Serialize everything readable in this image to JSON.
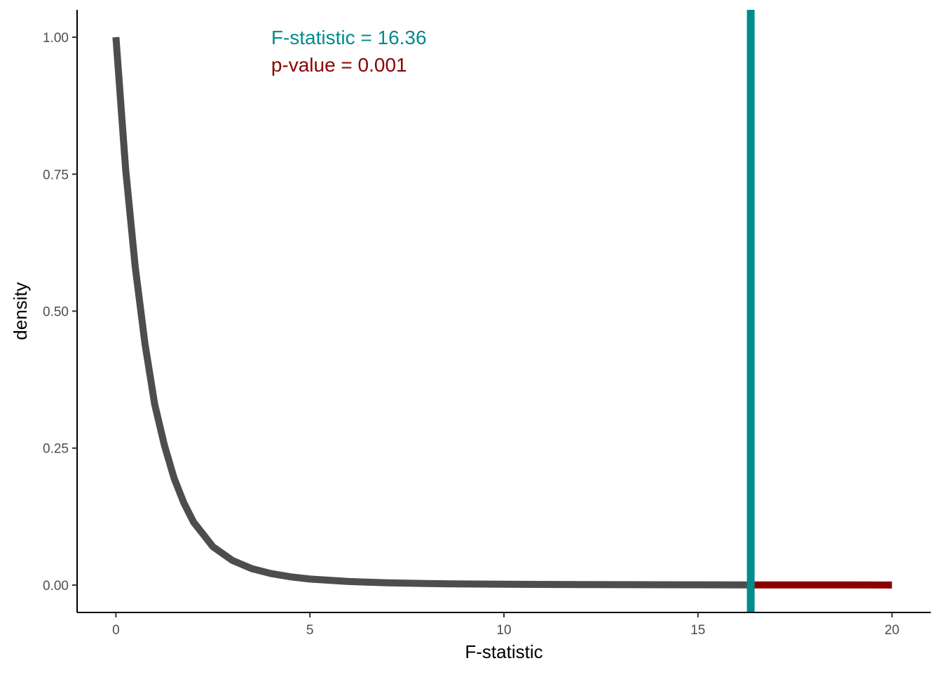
{
  "chart_data": {
    "type": "line",
    "title": "",
    "xlabel": "F-statistic",
    "ylabel": "density",
    "xlim": [
      -1,
      21
    ],
    "ylim": [
      -0.05,
      1.05
    ],
    "x_ticks": [
      0,
      5,
      10,
      15,
      20
    ],
    "x_tick_labels": [
      "0",
      "5",
      "10",
      "15",
      "20"
    ],
    "y_ticks": [
      0,
      0.25,
      0.5,
      0.75,
      1
    ],
    "y_tick_labels": [
      "0.00",
      "0.25",
      "0.50",
      "0.75",
      "1.00"
    ],
    "grid": false,
    "series": [
      {
        "color": "#4d4d4d",
        "x": [
          0,
          0.25,
          0.5,
          0.75,
          1,
          1.25,
          1.5,
          1.75,
          2,
          2.5,
          3,
          3.5,
          4,
          4.5,
          5,
          6,
          7,
          8,
          9,
          10,
          12,
          14,
          16.36
        ],
        "y": [
          1.0,
          0.76,
          0.58,
          0.44,
          0.33,
          0.255,
          0.195,
          0.15,
          0.115,
          0.07,
          0.045,
          0.03,
          0.021,
          0.015,
          0.011,
          0.0065,
          0.0042,
          0.0028,
          0.002,
          0.0015,
          0.0009,
          0.0006,
          0.0003
        ]
      },
      {
        "color": "#8b0000",
        "x": [
          16.36,
          17,
          18,
          19,
          20
        ],
        "y": [
          0.0003,
          0.00025,
          0.0002,
          0.00016,
          0.00013
        ]
      }
    ],
    "reference_line": {
      "orientation": "vertical",
      "x": 16.36,
      "color": "#008b8b"
    },
    "annotations": [
      {
        "text": "F-statistic = 16.36",
        "x": 4,
        "y": 1.0,
        "color": "#008b8b"
      },
      {
        "text": "p-value = 0.001",
        "x": 4,
        "y": 0.95,
        "color": "#8b0000"
      }
    ]
  }
}
